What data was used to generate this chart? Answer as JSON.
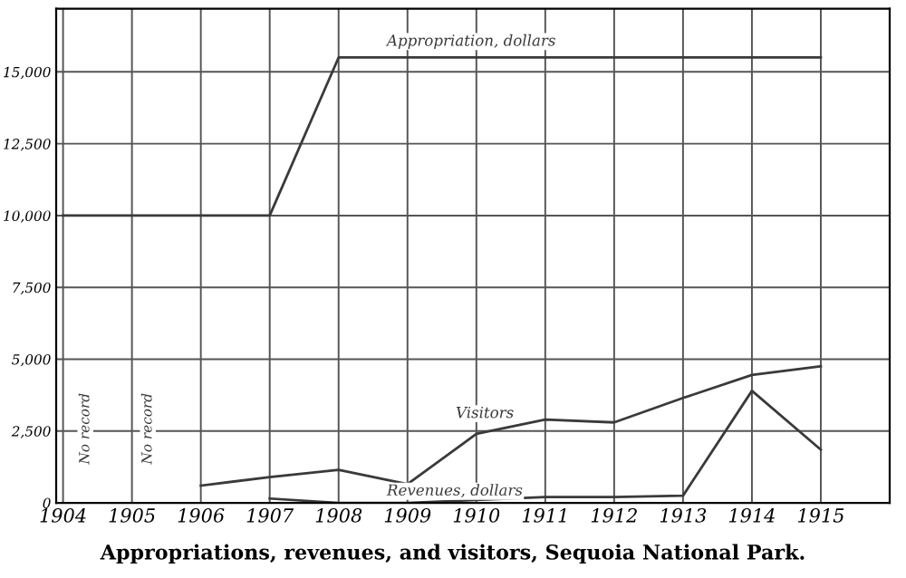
{
  "chart_data": {
    "type": "line",
    "title": "Appropriations, revenues, and visitors, Sequoia National Park.",
    "x": [
      1904,
      1905,
      1906,
      1907,
      1908,
      1909,
      1910,
      1911,
      1912,
      1913,
      1914,
      1915
    ],
    "series": [
      {
        "name": "Appropriation, dollars",
        "color": "#3a3a3a",
        "values": [
          10000,
          10000,
          10000,
          10000,
          15500,
          15500,
          15500,
          15500,
          15500,
          15500,
          15500,
          15500
        ]
      },
      {
        "name": "Visitors",
        "color": "#3a3a3a",
        "values": [
          null,
          null,
          600,
          900,
          1150,
          650,
          2400,
          2900,
          2800,
          3650,
          4450,
          4750
        ]
      },
      {
        "name": "Revenues, dollars",
        "color": "#3a3a3a",
        "values": [
          null,
          null,
          null,
          150,
          0,
          0,
          100,
          200,
          200,
          250,
          3900,
          1850
        ]
      }
    ],
    "xlim": [
      1903.9,
      1916
    ],
    "ylim": [
      0,
      17200
    ],
    "xticks": [
      1904,
      1905,
      1906,
      1907,
      1908,
      1909,
      1910,
      1911,
      1912,
      1913,
      1914,
      1915
    ],
    "yticks": [
      {
        "value": 0,
        "label": "0"
      },
      {
        "value": 2500,
        "label": "2,500"
      },
      {
        "value": 5000,
        "label": "5,000"
      },
      {
        "value": 7500,
        "label": "7,500"
      },
      {
        "value": 10000,
        "label": "10,000"
      },
      {
        "value": 12500,
        "label": "12,500"
      },
      {
        "value": 15000,
        "label": "15,000"
      }
    ],
    "annotations": [
      "No record",
      "No record"
    ],
    "grid": true,
    "legend": false,
    "marker": "none",
    "line_style": "solid"
  }
}
